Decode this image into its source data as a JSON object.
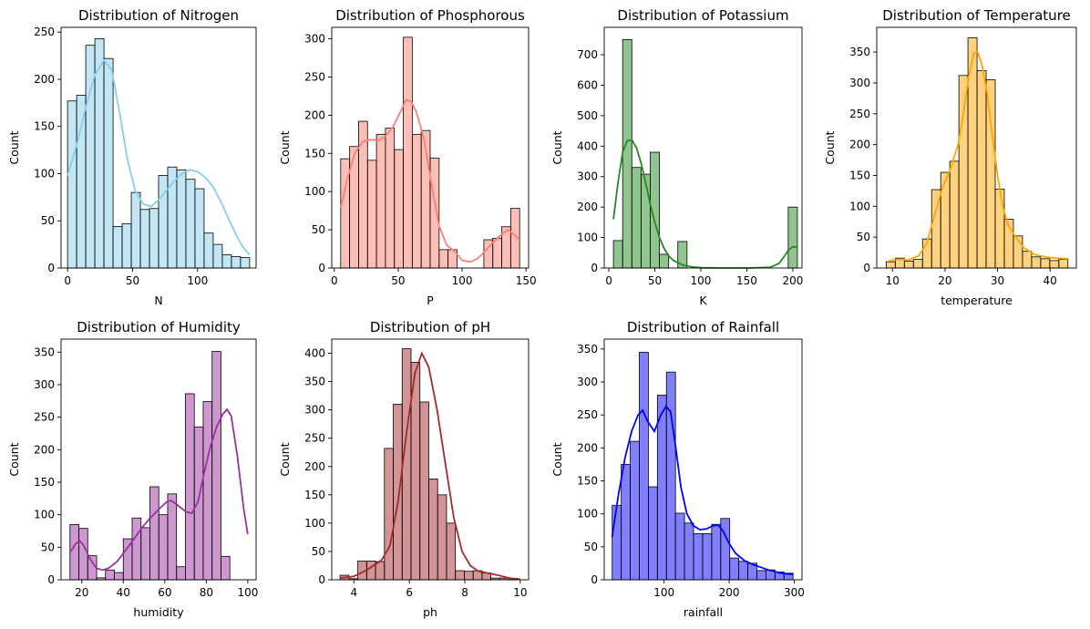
{
  "chart_data": [
    {
      "type": "bar",
      "title": "Distribution of Nitrogen",
      "xlabel": "N",
      "ylabel": "Count",
      "color": "#87CEEB",
      "xlim": [
        -5,
        145
      ],
      "ylim": [
        0,
        255
      ],
      "xticks": [
        0,
        50,
        100
      ],
      "yticks": [
        0,
        50,
        100,
        150,
        200,
        250
      ],
      "bin_start": 0,
      "bin_width": 7,
      "values": [
        177,
        183,
        236,
        243,
        222,
        44,
        47,
        80,
        62,
        63,
        98,
        107,
        104,
        94,
        84,
        37,
        25,
        14,
        12,
        11
      ],
      "kde": [
        [
          0,
          98
        ],
        [
          7,
          130
        ],
        [
          14,
          170
        ],
        [
          21,
          205
        ],
        [
          28,
          220
        ],
        [
          34,
          210
        ],
        [
          40,
          165
        ],
        [
          46,
          115
        ],
        [
          52,
          82
        ],
        [
          58,
          68
        ],
        [
          64,
          65
        ],
        [
          70,
          72
        ],
        [
          76,
          82
        ],
        [
          82,
          92
        ],
        [
          88,
          100
        ],
        [
          94,
          104
        ],
        [
          100,
          102
        ],
        [
          106,
          96
        ],
        [
          112,
          86
        ],
        [
          118,
          70
        ],
        [
          124,
          52
        ],
        [
          130,
          34
        ],
        [
          135,
          22
        ],
        [
          140,
          14
        ]
      ]
    },
    {
      "type": "bar",
      "title": "Distribution of Phosphorous",
      "xlabel": "P",
      "ylabel": "Count",
      "color": "#FA8072",
      "xlim": [
        -2,
        152
      ],
      "ylim": [
        0,
        315
      ],
      "xticks": [
        0,
        50,
        100,
        150
      ],
      "yticks": [
        0,
        50,
        100,
        150,
        200,
        250,
        300
      ],
      "bin_start": 5,
      "bin_width": 7,
      "values": [
        143,
        159,
        192,
        141,
        175,
        183,
        155,
        302,
        175,
        180,
        144,
        24,
        24,
        0,
        0,
        0,
        37,
        39,
        54,
        78
      ],
      "kde": [
        [
          5,
          78
        ],
        [
          10,
          115
        ],
        [
          16,
          150
        ],
        [
          22,
          165
        ],
        [
          28,
          168
        ],
        [
          34,
          167
        ],
        [
          40,
          172
        ],
        [
          46,
          185
        ],
        [
          52,
          205
        ],
        [
          56,
          220
        ],
        [
          60,
          218
        ],
        [
          64,
          205
        ],
        [
          70,
          170
        ],
        [
          76,
          110
        ],
        [
          82,
          55
        ],
        [
          88,
          30
        ],
        [
          94,
          22
        ],
        [
          100,
          10
        ],
        [
          106,
          8
        ],
        [
          112,
          12
        ],
        [
          118,
          22
        ],
        [
          124,
          33
        ],
        [
          130,
          43
        ],
        [
          136,
          50
        ],
        [
          142,
          42
        ],
        [
          145,
          36
        ]
      ]
    },
    {
      "type": "bar",
      "title": "Distribution of Potassium",
      "xlabel": "K",
      "ylabel": "Count",
      "color": "#228B22",
      "xlim": [
        -5,
        210
      ],
      "ylim": [
        0,
        790
      ],
      "xticks": [
        0,
        50,
        100,
        150,
        200
      ],
      "yticks": [
        0,
        100,
        200,
        300,
        400,
        500,
        600,
        700
      ],
      "bin_start": 5,
      "bin_width": 10,
      "values": [
        90,
        750,
        330,
        308,
        380,
        45,
        0,
        87,
        0,
        0,
        0,
        0,
        0,
        0,
        0,
        0,
        0,
        0,
        0,
        200
      ],
      "kde": [
        [
          5,
          160
        ],
        [
          10,
          280
        ],
        [
          15,
          380
        ],
        [
          20,
          418
        ],
        [
          25,
          420
        ],
        [
          30,
          395
        ],
        [
          35,
          345
        ],
        [
          40,
          280
        ],
        [
          45,
          210
        ],
        [
          50,
          150
        ],
        [
          55,
          100
        ],
        [
          60,
          65
        ],
        [
          65,
          40
        ],
        [
          70,
          25
        ],
        [
          80,
          10
        ],
        [
          90,
          4
        ],
        [
          100,
          1
        ],
        [
          120,
          0
        ],
        [
          150,
          0
        ],
        [
          175,
          2
        ],
        [
          185,
          15
        ],
        [
          190,
          35
        ],
        [
          195,
          58
        ],
        [
          200,
          70
        ],
        [
          205,
          68
        ]
      ]
    },
    {
      "type": "bar",
      "title": "Distribution of Temperature",
      "xlabel": "temperature",
      "ylabel": "Count",
      "color": "#FFA500",
      "xlim": [
        7,
        45
      ],
      "ylim": [
        0,
        390
      ],
      "xticks": [
        10,
        20,
        30,
        40
      ],
      "yticks": [
        0,
        50,
        100,
        150,
        200,
        250,
        300,
        350
      ],
      "bin_start": 8.8,
      "bin_width": 1.73,
      "values": [
        10,
        16,
        11,
        14,
        47,
        127,
        155,
        173,
        312,
        373,
        320,
        305,
        128,
        79,
        52,
        27,
        18,
        15,
        12,
        14
      ],
      "kde": [
        [
          9,
          11
        ],
        [
          11,
          14
        ],
        [
          13,
          13
        ],
        [
          15,
          20
        ],
        [
          16.5,
          40
        ],
        [
          18,
          85
        ],
        [
          19.5,
          130
        ],
        [
          21,
          160
        ],
        [
          22.5,
          200
        ],
        [
          23.5,
          250
        ],
        [
          24.5,
          310
        ],
        [
          25.5,
          348
        ],
        [
          26.2,
          350
        ],
        [
          27,
          330
        ],
        [
          28,
          285
        ],
        [
          29,
          215
        ],
        [
          30,
          150
        ],
        [
          31,
          100
        ],
        [
          32,
          70
        ],
        [
          33.5,
          50
        ],
        [
          35,
          33
        ],
        [
          37,
          22
        ],
        [
          39,
          18
        ],
        [
          41,
          16
        ],
        [
          43.5,
          15
        ]
      ]
    },
    {
      "type": "bar",
      "title": "Distribution of Humidity",
      "xlabel": "humidity",
      "ylabel": "Count",
      "color": "#9B30A0",
      "xlim": [
        10,
        104
      ],
      "ylim": [
        0,
        370
      ],
      "xticks": [
        20,
        40,
        60,
        80,
        100
      ],
      "yticks": [
        0,
        50,
        100,
        150,
        200,
        250,
        300,
        350
      ],
      "bin_start": 14.3,
      "bin_width": 4.28,
      "values": [
        85,
        79,
        37,
        3,
        15,
        11,
        63,
        95,
        80,
        143,
        100,
        132,
        20,
        286,
        235,
        274,
        351,
        36,
        0,
        0
      ],
      "kde": [
        [
          14.3,
          42
        ],
        [
          17,
          55
        ],
        [
          19,
          60
        ],
        [
          21,
          52
        ],
        [
          24,
          32
        ],
        [
          27,
          18
        ],
        [
          30,
          15
        ],
        [
          33,
          18
        ],
        [
          37,
          28
        ],
        [
          41,
          45
        ],
        [
          45,
          62
        ],
        [
          49,
          80
        ],
        [
          53,
          95
        ],
        [
          57,
          108
        ],
        [
          61,
          120
        ],
        [
          63,
          122
        ],
        [
          66,
          115
        ],
        [
          70,
          105
        ],
        [
          73,
          102
        ],
        [
          76,
          120
        ],
        [
          79,
          165
        ],
        [
          82,
          205
        ],
        [
          85,
          235
        ],
        [
          88,
          255
        ],
        [
          90,
          262
        ],
        [
          92,
          252
        ],
        [
          95,
          190
        ],
        [
          98,
          110
        ],
        [
          100,
          70
        ]
      ]
    },
    {
      "type": "bar",
      "title": "Distribution of pH",
      "xlabel": "ph",
      "ylabel": "Count",
      "color": "#A52A2A",
      "xlim": [
        3.2,
        10.3
      ],
      "ylim": [
        0,
        425
      ],
      "xticks": [
        4,
        6,
        8,
        10
      ],
      "yticks": [
        0,
        50,
        100,
        150,
        200,
        250,
        300,
        350,
        400
      ],
      "bin_start": 3.5,
      "bin_width": 0.32,
      "values": [
        8,
        2,
        33,
        33,
        32,
        232,
        310,
        408,
        384,
        314,
        178,
        150,
        100,
        16,
        15,
        16,
        12,
        3,
        3,
        2
      ],
      "kde": [
        [
          3.5,
          3
        ],
        [
          4,
          6
        ],
        [
          4.5,
          18
        ],
        [
          5,
          35
        ],
        [
          5.3,
          60
        ],
        [
          5.6,
          140
        ],
        [
          5.9,
          260
        ],
        [
          6.2,
          365
        ],
        [
          6.45,
          400
        ],
        [
          6.7,
          375
        ],
        [
          7,
          300
        ],
        [
          7.3,
          205
        ],
        [
          7.6,
          110
        ],
        [
          7.9,
          50
        ],
        [
          8.2,
          25
        ],
        [
          8.5,
          15
        ],
        [
          8.8,
          12
        ],
        [
          9.2,
          8
        ],
        [
          9.6,
          3
        ],
        [
          10,
          1
        ]
      ]
    },
    {
      "type": "bar",
      "title": "Distribution of Rainfall",
      "xlabel": "rainfall",
      "ylabel": "Count",
      "color": "#0000FF",
      "xlim": [
        8,
        312
      ],
      "ylim": [
        0,
        365
      ],
      "xticks": [
        100,
        200,
        300
      ],
      "yticks": [
        0,
        50,
        100,
        150,
        200,
        250,
        300,
        350
      ],
      "bin_start": 20.2,
      "bin_width": 13.9,
      "values": [
        113,
        175,
        210,
        345,
        141,
        280,
        315,
        101,
        86,
        70,
        70,
        84,
        93,
        33,
        28,
        25,
        14,
        15,
        12,
        10
      ],
      "kde": [
        [
          20,
          65
        ],
        [
          30,
          130
        ],
        [
          40,
          185
        ],
        [
          50,
          225
        ],
        [
          60,
          250
        ],
        [
          67,
          257
        ],
        [
          75,
          240
        ],
        [
          85,
          225
        ],
        [
          95,
          250
        ],
        [
          103,
          263
        ],
        [
          110,
          255
        ],
        [
          118,
          200
        ],
        [
          126,
          140
        ],
        [
          135,
          100
        ],
        [
          145,
          82
        ],
        [
          155,
          76
        ],
        [
          165,
          77
        ],
        [
          175,
          82
        ],
        [
          183,
          83
        ],
        [
          190,
          75
        ],
        [
          200,
          55
        ],
        [
          210,
          40
        ],
        [
          225,
          28
        ],
        [
          240,
          22
        ],
        [
          260,
          15
        ],
        [
          280,
          10
        ],
        [
          298,
          8
        ]
      ]
    }
  ]
}
